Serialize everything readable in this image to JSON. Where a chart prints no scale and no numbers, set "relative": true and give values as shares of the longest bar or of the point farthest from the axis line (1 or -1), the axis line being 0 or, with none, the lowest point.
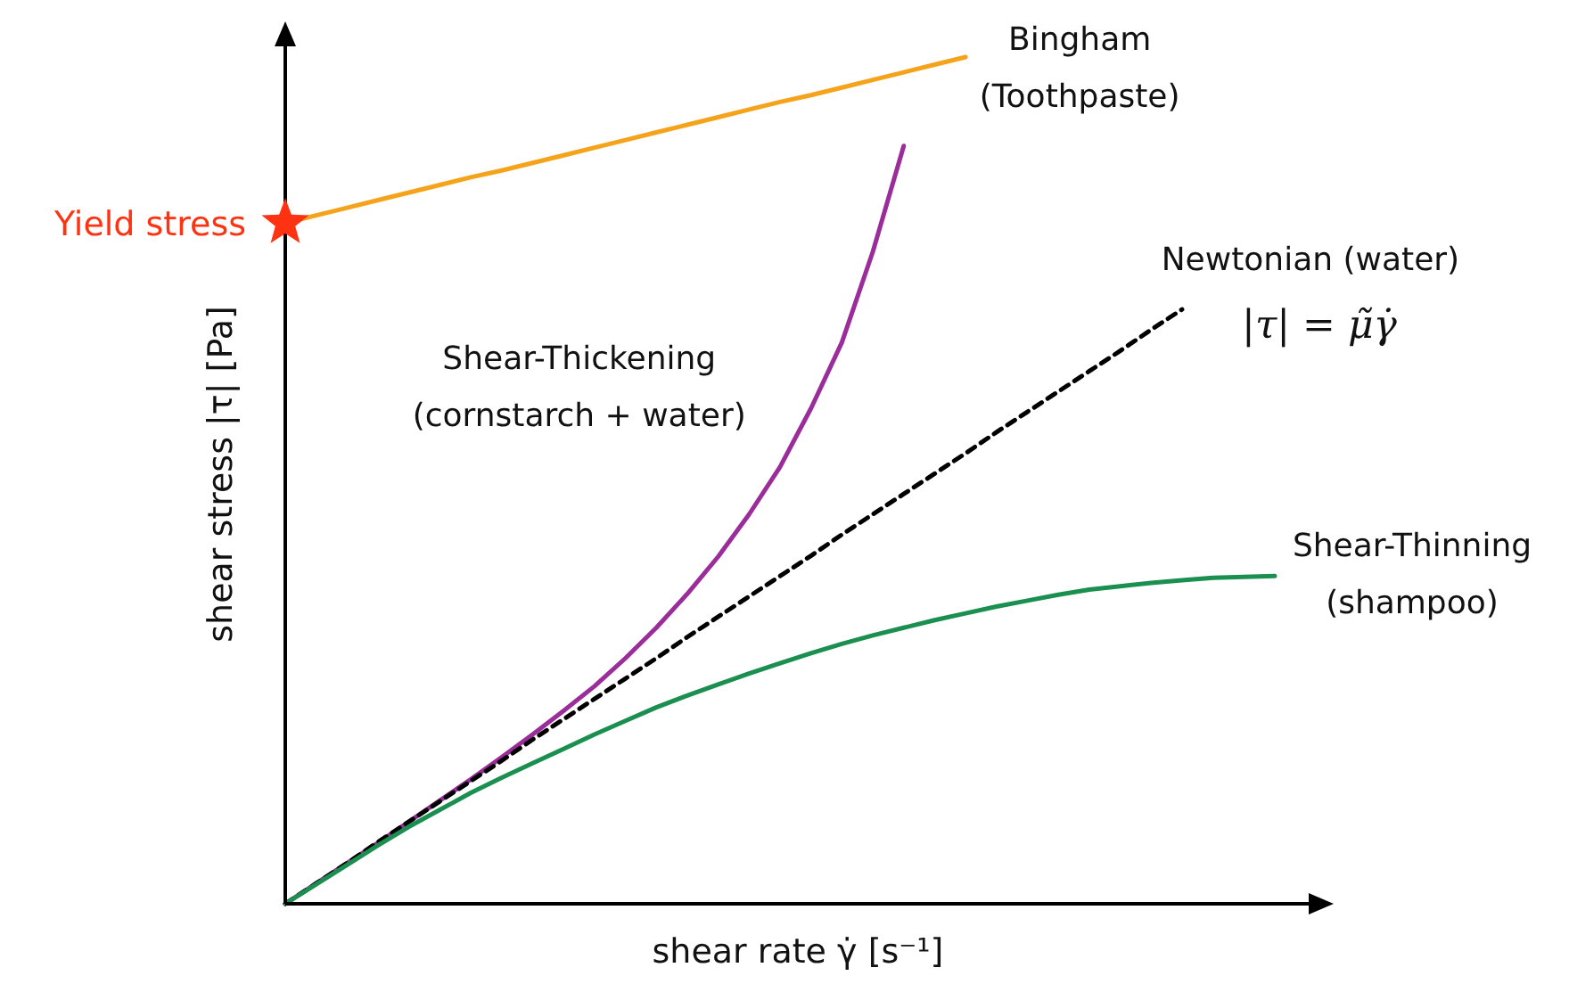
{
  "chart_data": {
    "type": "line",
    "relative": true,
    "xlabel": "shear rate γ̇ [s⁻¹]",
    "ylabel": "shear stress |τ| [Pa]",
    "categories": [
      null,
      null,
      null,
      null,
      null,
      null,
      null,
      null,
      null,
      null,
      null,
      null,
      null,
      null,
      null,
      null,
      null,
      null,
      null,
      null,
      null,
      null,
      null,
      null,
      null,
      null,
      null,
      null,
      null,
      null,
      null,
      null,
      null
    ],
    "series": [
      {
        "name": "Bingham (Toothpaste)",
        "color": "#f5a31a",
        "line_style": "solid",
        "values": [
          0.804,
          0.813,
          0.822,
          0.831,
          0.84,
          0.849,
          0.858,
          0.866,
          0.875,
          0.884,
          0.893,
          0.902,
          0.911,
          0.92,
          0.929,
          0.938,
          0.947,
          0.955,
          0.964,
          0.973,
          0.982,
          0.991,
          1.0,
          null,
          null,
          null,
          null,
          null,
          null,
          null,
          null,
          null,
          null
        ]
      },
      {
        "name": "Shear-Thickening (cornstarch + water)",
        "color": "#9b2d9b",
        "line_style": "solid",
        "values": [
          0,
          0.024,
          0.048,
          0.072,
          0.097,
          0.122,
          0.147,
          0.173,
          0.2,
          0.228,
          0.257,
          0.29,
          0.326,
          0.366,
          0.41,
          0.46,
          0.516,
          0.585,
          0.663,
          0.77,
          0.895,
          null,
          null,
          null,
          null,
          null,
          null,
          null,
          null,
          null,
          null,
          null,
          null
        ]
      },
      {
        "name": "Newtonian (water)",
        "color": "#000000",
        "line_style": "dashed",
        "values": [
          0,
          0.024,
          0.048,
          0.073,
          0.097,
          0.121,
          0.145,
          0.169,
          0.194,
          0.218,
          0.242,
          0.266,
          0.29,
          0.315,
          0.339,
          0.363,
          0.387,
          0.411,
          0.436,
          0.46,
          0.484,
          0.508,
          0.532,
          0.557,
          0.581,
          0.605,
          0.629,
          0.653,
          0.678,
          0.702,
          null,
          null,
          null
        ]
      },
      {
        "name": "Shear-Thinning (shampoo)",
        "color": "#1a8f4f",
        "line_style": "solid",
        "values": [
          0,
          0.023,
          0.046,
          0.069,
          0.091,
          0.111,
          0.131,
          0.149,
          0.166,
          0.183,
          0.2,
          0.216,
          0.232,
          0.246,
          0.259,
          0.272,
          0.284,
          0.296,
          0.307,
          0.317,
          0.326,
          0.335,
          0.343,
          0.351,
          0.358,
          0.365,
          0.371,
          0.375,
          0.379,
          0.382,
          0.385,
          0.386,
          0.387
        ]
      }
    ],
    "annotations": [
      "|τ| = μ̃γ̇",
      "Yield stress"
    ]
  }
}
